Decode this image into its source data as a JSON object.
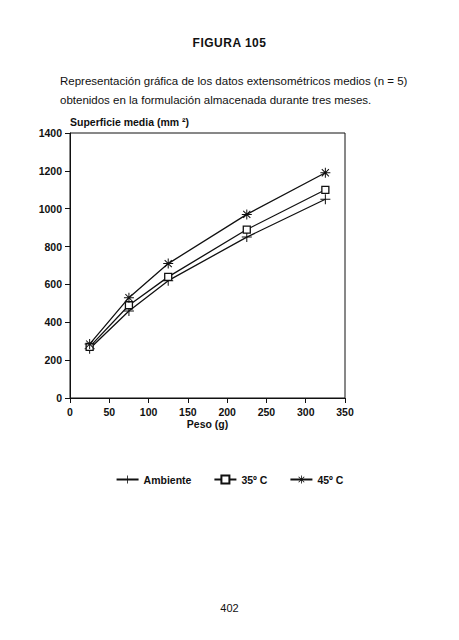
{
  "chart_data": {
    "type": "line",
    "title": "FIGURA 105",
    "subtitle": "Representación gráfica de los datos extensométricos medios (n = 5) obtenidos en la formulación almacenada durante tres meses.",
    "annotations": [
      "402"
    ],
    "x_label": "Peso (g)",
    "y_label": "Superficie media (mm ²)",
    "x": [
      25,
      75,
      125,
      225,
      325
    ],
    "series": [
      {
        "name": "Ambiente",
        "color": "#111111",
        "marker": "plus",
        "values": [
          260,
          460,
          620,
          850,
          1050
        ]
      },
      {
        "name": "35º C",
        "color": "#111111",
        "marker": "square",
        "values": [
          270,
          490,
          640,
          890,
          1100
        ]
      },
      {
        "name": "45º C",
        "color": "#111111",
        "marker": "star",
        "values": [
          285,
          530,
          710,
          970,
          1190
        ]
      }
    ],
    "xlim": [
      0,
      350
    ],
    "xticks": [
      0,
      50,
      100,
      150,
      200,
      250,
      300,
      350
    ],
    "ylim": [
      0,
      1400
    ],
    "yticks": [
      0,
      200,
      400,
      600,
      800,
      1000,
      1200,
      1400
    ],
    "grid": false,
    "legend": "bottom"
  }
}
